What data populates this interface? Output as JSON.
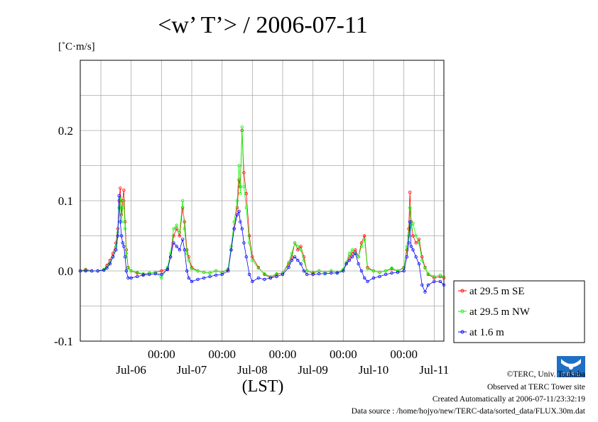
{
  "chart_data": {
    "type": "line",
    "title": "<w’ T’> / 2006-07-11",
    "ylabel": "[˚C·m/s]",
    "xlabel": "(LST)",
    "ylim": [
      -0.1,
      0.3
    ],
    "yticks": [
      -0.1,
      0.0,
      0.1,
      0.2
    ],
    "ytick_labels": [
      "-0.1",
      "0.0",
      "0.1",
      "0.2"
    ],
    "xlim": [
      -0.34,
      5.66
    ],
    "xtick_major": [
      {
        "x": 1,
        "time": "00:00",
        "date": "Jul-06"
      },
      {
        "x": 2,
        "time": "00:00",
        "date": "Jul-07"
      },
      {
        "x": 3,
        "time": "00:00",
        "date": "Jul-08"
      },
      {
        "x": 4,
        "time": "00:00",
        "date": "Jul-09"
      },
      {
        "x": 5,
        "time": "00:00",
        "date": "Jul-10"
      }
    ],
    "date_labels": [
      {
        "x": 0.5,
        "label": "Jul-06"
      },
      {
        "x": 1.5,
        "label": "Jul-07"
      },
      {
        "x": 2.5,
        "label": "Jul-08"
      },
      {
        "x": 3.5,
        "label": "Jul-09"
      },
      {
        "x": 4.5,
        "label": "Jul-10"
      },
      {
        "x": 5.5,
        "label": "Jul-11"
      }
    ],
    "time_labels": [
      "00:00",
      "00:00",
      "00:00",
      "00:00",
      "00:00"
    ],
    "grid": true,
    "legend_position": "right-bottom",
    "series": [
      {
        "name": "at 29.5 m SE",
        "color": "#ff0000",
        "marker": "circle",
        "points": [
          [
            -0.34,
            0.0
          ],
          [
            -0.25,
            0.002
          ],
          [
            -0.15,
            0.0
          ],
          [
            -0.05,
            0.0
          ],
          [
            0.05,
            0.002
          ],
          [
            0.1,
            0.008
          ],
          [
            0.15,
            0.015
          ],
          [
            0.2,
            0.025
          ],
          [
            0.25,
            0.04
          ],
          [
            0.28,
            0.06
          ],
          [
            0.3,
            0.1
          ],
          [
            0.32,
            0.118
          ],
          [
            0.34,
            0.08
          ],
          [
            0.36,
            0.1
          ],
          [
            0.38,
            0.115
          ],
          [
            0.4,
            0.07
          ],
          [
            0.42,
            0.03
          ],
          [
            0.45,
            0.005
          ],
          [
            0.5,
            0.0
          ],
          [
            0.6,
            -0.003
          ],
          [
            0.7,
            -0.005
          ],
          [
            0.8,
            -0.003
          ],
          [
            0.9,
            -0.002
          ],
          [
            1.0,
            0.0
          ],
          [
            1.1,
            0.003
          ],
          [
            1.15,
            0.02
          ],
          [
            1.2,
            0.05
          ],
          [
            1.25,
            0.06
          ],
          [
            1.3,
            0.05
          ],
          [
            1.35,
            0.09
          ],
          [
            1.38,
            0.07
          ],
          [
            1.42,
            0.03
          ],
          [
            1.45,
            0.02
          ],
          [
            1.5,
            0.005
          ],
          [
            1.6,
            0.0
          ],
          [
            1.7,
            -0.002
          ],
          [
            1.8,
            -0.003
          ],
          [
            1.9,
            0.0
          ],
          [
            2.0,
            -0.002
          ],
          [
            2.1,
            0.002
          ],
          [
            2.15,
            0.03
          ],
          [
            2.2,
            0.06
          ],
          [
            2.25,
            0.09
          ],
          [
            2.28,
            0.13
          ],
          [
            2.3,
            0.12
          ],
          [
            2.33,
            0.2
          ],
          [
            2.36,
            0.14
          ],
          [
            2.4,
            0.11
          ],
          [
            2.45,
            0.05
          ],
          [
            2.5,
            0.02
          ],
          [
            2.6,
            0.005
          ],
          [
            2.7,
            -0.005
          ],
          [
            2.8,
            -0.01
          ],
          [
            2.9,
            -0.005
          ],
          [
            3.0,
            -0.003
          ],
          [
            3.1,
            0.01
          ],
          [
            3.15,
            0.02
          ],
          [
            3.2,
            0.04
          ],
          [
            3.25,
            0.03
          ],
          [
            3.3,
            0.035
          ],
          [
            3.35,
            0.02
          ],
          [
            3.4,
            0.0
          ],
          [
            3.5,
            -0.003
          ],
          [
            3.6,
            0.0
          ],
          [
            3.7,
            -0.002
          ],
          [
            3.8,
            0.0
          ],
          [
            3.9,
            -0.002
          ],
          [
            4.0,
            0.002
          ],
          [
            4.05,
            0.01
          ],
          [
            4.1,
            0.02
          ],
          [
            4.15,
            0.025
          ],
          [
            4.2,
            0.03
          ],
          [
            4.25,
            0.02
          ],
          [
            4.3,
            0.04
          ],
          [
            4.35,
            0.05
          ],
          [
            4.4,
            0.005
          ],
          [
            4.5,
            0.0
          ],
          [
            4.6,
            -0.002
          ],
          [
            4.7,
            0.0
          ],
          [
            4.8,
            0.003
          ],
          [
            4.9,
            0.0
          ],
          [
            5.0,
            0.005
          ],
          [
            5.05,
            0.03
          ],
          [
            5.08,
            0.06
          ],
          [
            5.1,
            0.112
          ],
          [
            5.12,
            0.07
          ],
          [
            5.15,
            0.05
          ],
          [
            5.2,
            0.04
          ],
          [
            5.25,
            0.045
          ],
          [
            5.3,
            0.02
          ],
          [
            5.35,
            0.005
          ],
          [
            5.4,
            -0.005
          ],
          [
            5.5,
            -0.01
          ],
          [
            5.6,
            -0.008
          ],
          [
            5.66,
            -0.01
          ]
        ]
      },
      {
        "name": "at 29.5 m NW",
        "color": "#00ff00",
        "marker": "circle",
        "points": [
          [
            -0.34,
            0.0
          ],
          [
            -0.25,
            0.001
          ],
          [
            -0.15,
            0.0
          ],
          [
            -0.05,
            0.0
          ],
          [
            0.05,
            0.002
          ],
          [
            0.1,
            0.006
          ],
          [
            0.15,
            0.012
          ],
          [
            0.2,
            0.02
          ],
          [
            0.25,
            0.035
          ],
          [
            0.28,
            0.055
          ],
          [
            0.3,
            0.09
          ],
          [
            0.32,
            0.105
          ],
          [
            0.34,
            0.07
          ],
          [
            0.36,
            0.09
          ],
          [
            0.38,
            0.1
          ],
          [
            0.4,
            0.06
          ],
          [
            0.42,
            0.025
          ],
          [
            0.45,
            0.004
          ],
          [
            0.5,
            0.0
          ],
          [
            0.6,
            -0.002
          ],
          [
            0.7,
            -0.004
          ],
          [
            0.8,
            -0.003
          ],
          [
            0.9,
            -0.002
          ],
          [
            1.0,
            -0.01
          ],
          [
            1.1,
            0.005
          ],
          [
            1.15,
            0.025
          ],
          [
            1.2,
            0.06
          ],
          [
            1.25,
            0.065
          ],
          [
            1.3,
            0.055
          ],
          [
            1.35,
            0.1
          ],
          [
            1.38,
            0.06
          ],
          [
            1.42,
            0.025
          ],
          [
            1.45,
            0.015
          ],
          [
            1.5,
            0.003
          ],
          [
            1.6,
            0.0
          ],
          [
            1.7,
            -0.002
          ],
          [
            1.8,
            -0.003
          ],
          [
            1.9,
            0.0
          ],
          [
            2.0,
            -0.002
          ],
          [
            2.1,
            0.003
          ],
          [
            2.15,
            0.035
          ],
          [
            2.2,
            0.07
          ],
          [
            2.25,
            0.1
          ],
          [
            2.28,
            0.15
          ],
          [
            2.3,
            0.11
          ],
          [
            2.33,
            0.205
          ],
          [
            2.36,
            0.12
          ],
          [
            2.4,
            0.09
          ],
          [
            2.45,
            0.04
          ],
          [
            2.5,
            0.015
          ],
          [
            2.6,
            0.004
          ],
          [
            2.7,
            -0.004
          ],
          [
            2.8,
            -0.008
          ],
          [
            2.9,
            -0.004
          ],
          [
            3.0,
            -0.003
          ],
          [
            3.1,
            0.012
          ],
          [
            3.15,
            0.025
          ],
          [
            3.2,
            0.04
          ],
          [
            3.25,
            0.035
          ],
          [
            3.3,
            0.03
          ],
          [
            3.35,
            0.015
          ],
          [
            3.4,
            0.0
          ],
          [
            3.5,
            -0.002
          ],
          [
            3.6,
            0.0
          ],
          [
            3.7,
            -0.002
          ],
          [
            3.8,
            0.0
          ],
          [
            3.9,
            -0.002
          ],
          [
            4.0,
            0.002
          ],
          [
            4.05,
            0.012
          ],
          [
            4.1,
            0.025
          ],
          [
            4.15,
            0.03
          ],
          [
            4.2,
            0.025
          ],
          [
            4.25,
            0.02
          ],
          [
            4.3,
            0.035
          ],
          [
            4.35,
            0.045
          ],
          [
            4.4,
            0.003
          ],
          [
            4.5,
            0.0
          ],
          [
            4.6,
            -0.002
          ],
          [
            4.7,
            0.0
          ],
          [
            4.8,
            0.004
          ],
          [
            4.9,
            0.0
          ],
          [
            5.0,
            0.004
          ],
          [
            5.05,
            0.035
          ],
          [
            5.08,
            0.05
          ],
          [
            5.1,
            0.09
          ],
          [
            5.12,
            0.06
          ],
          [
            5.15,
            0.068
          ],
          [
            5.2,
            0.05
          ],
          [
            5.25,
            0.04
          ],
          [
            5.3,
            0.015
          ],
          [
            5.35,
            0.004
          ],
          [
            5.4,
            -0.004
          ],
          [
            5.5,
            -0.008
          ],
          [
            5.6,
            -0.006
          ],
          [
            5.66,
            -0.008
          ]
        ]
      },
      {
        "name": "at 1.6 m",
        "color": "#0000ff",
        "marker": "circle",
        "points": [
          [
            -0.34,
            0.0
          ],
          [
            -0.25,
            0.0
          ],
          [
            -0.15,
            0.0
          ],
          [
            -0.05,
            0.0
          ],
          [
            0.05,
            0.001
          ],
          [
            0.1,
            0.004
          ],
          [
            0.15,
            0.01
          ],
          [
            0.2,
            0.02
          ],
          [
            0.25,
            0.03
          ],
          [
            0.28,
            0.05
          ],
          [
            0.3,
            0.107
          ],
          [
            0.32,
            0.07
          ],
          [
            0.34,
            0.05
          ],
          [
            0.36,
            0.04
          ],
          [
            0.38,
            0.035
          ],
          [
            0.4,
            0.02
          ],
          [
            0.42,
            0.0
          ],
          [
            0.45,
            -0.01
          ],
          [
            0.5,
            -0.01
          ],
          [
            0.6,
            -0.008
          ],
          [
            0.7,
            -0.006
          ],
          [
            0.8,
            -0.005
          ],
          [
            0.9,
            -0.004
          ],
          [
            1.0,
            -0.005
          ],
          [
            1.1,
            0.002
          ],
          [
            1.15,
            0.02
          ],
          [
            1.2,
            0.04
          ],
          [
            1.25,
            0.035
          ],
          [
            1.3,
            0.03
          ],
          [
            1.35,
            0.045
          ],
          [
            1.38,
            0.03
          ],
          [
            1.42,
            0.0
          ],
          [
            1.45,
            -0.01
          ],
          [
            1.5,
            -0.015
          ],
          [
            1.6,
            -0.012
          ],
          [
            1.7,
            -0.01
          ],
          [
            1.8,
            -0.008
          ],
          [
            1.9,
            -0.006
          ],
          [
            2.0,
            -0.005
          ],
          [
            2.1,
            0.0
          ],
          [
            2.15,
            0.03
          ],
          [
            2.2,
            0.06
          ],
          [
            2.25,
            0.08
          ],
          [
            2.28,
            0.085
          ],
          [
            2.3,
            0.07
          ],
          [
            2.33,
            0.06
          ],
          [
            2.36,
            0.04
          ],
          [
            2.4,
            0.02
          ],
          [
            2.45,
            -0.005
          ],
          [
            2.5,
            -0.015
          ],
          [
            2.6,
            -0.01
          ],
          [
            2.7,
            -0.012
          ],
          [
            2.8,
            -0.01
          ],
          [
            2.9,
            -0.008
          ],
          [
            3.0,
            -0.005
          ],
          [
            3.1,
            0.005
          ],
          [
            3.15,
            0.015
          ],
          [
            3.2,
            0.02
          ],
          [
            3.25,
            0.015
          ],
          [
            3.3,
            0.01
          ],
          [
            3.35,
            0.0
          ],
          [
            3.4,
            -0.005
          ],
          [
            3.5,
            -0.005
          ],
          [
            3.6,
            -0.004
          ],
          [
            3.7,
            -0.004
          ],
          [
            3.8,
            -0.003
          ],
          [
            3.9,
            -0.003
          ],
          [
            4.0,
            0.0
          ],
          [
            4.05,
            0.01
          ],
          [
            4.1,
            0.015
          ],
          [
            4.15,
            0.02
          ],
          [
            4.2,
            0.025
          ],
          [
            4.25,
            0.01
          ],
          [
            4.3,
            0.0
          ],
          [
            4.35,
            -0.01
          ],
          [
            4.4,
            -0.015
          ],
          [
            4.5,
            -0.01
          ],
          [
            4.6,
            -0.008
          ],
          [
            4.7,
            -0.005
          ],
          [
            4.8,
            -0.003
          ],
          [
            4.9,
            -0.002
          ],
          [
            5.0,
            0.0
          ],
          [
            5.05,
            0.02
          ],
          [
            5.08,
            0.04
          ],
          [
            5.1,
            0.07
          ],
          [
            5.12,
            0.035
          ],
          [
            5.15,
            0.03
          ],
          [
            5.2,
            0.02
          ],
          [
            5.25,
            0.01
          ],
          [
            5.3,
            -0.02
          ],
          [
            5.35,
            -0.03
          ],
          [
            5.4,
            -0.02
          ],
          [
            5.5,
            -0.015
          ],
          [
            5.6,
            -0.015
          ],
          [
            5.66,
            -0.02
          ]
        ]
      }
    ]
  },
  "footer": {
    "copyright": "©TERC, Univ. Tsukuba",
    "observed": "Observed at TERC Tower site",
    "created": "Created Automatically at 2006-07-11/23:32:19",
    "source": "Data source : /home/hojyo/new/TERC-data/sorted_data/FLUX.30m.dat"
  },
  "logo_text": "T E R C",
  "colors": {
    "grid": "#aaaaaa",
    "axis": "#000000",
    "logo": "#1f6fc4"
  }
}
